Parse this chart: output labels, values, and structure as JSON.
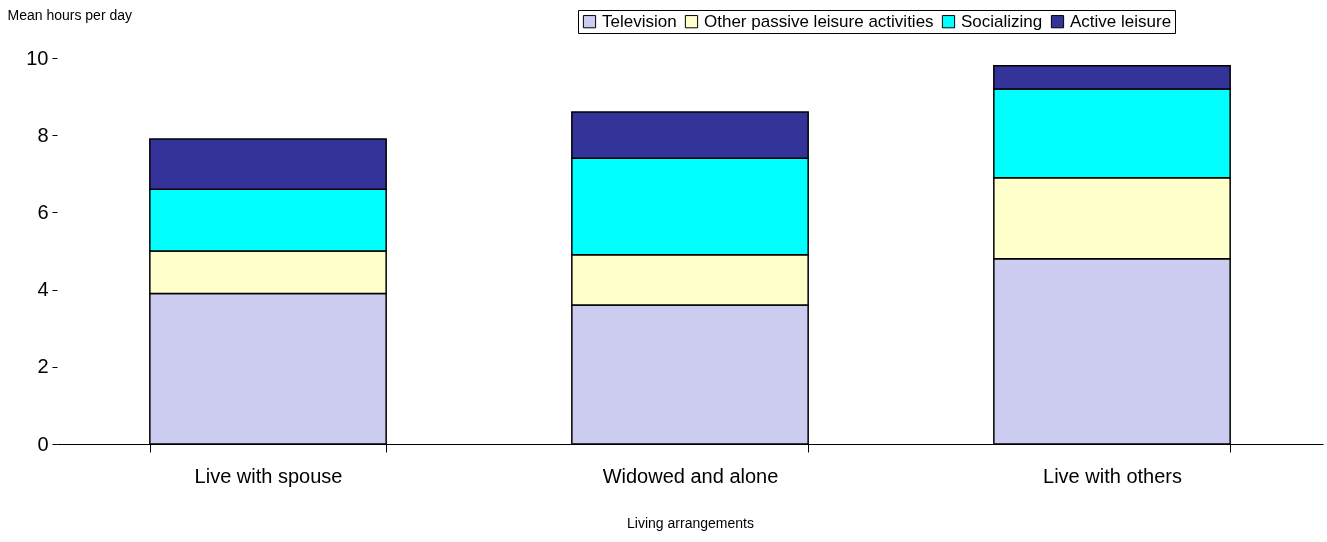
{
  "chart_data": {
    "type": "bar",
    "stacked": true,
    "xlabel": "Living arrangements",
    "ylabel": "Mean hours per day",
    "categories": [
      "Live with spouse",
      "Widowed and alone",
      "Live with others"
    ],
    "series": [
      {
        "name": "Television",
        "color": "#ccccf0",
        "values": [
          3.9,
          3.6,
          4.8
        ]
      },
      {
        "name": "Other passive leisure activities",
        "color": "#ffffcc",
        "values": [
          1.1,
          1.3,
          2.1
        ]
      },
      {
        "name": "Socializing",
        "color": "#00ffff",
        "values": [
          1.6,
          2.5,
          2.3
        ]
      },
      {
        "name": "Active leisure",
        "color": "#333399",
        "values": [
          1.3,
          1.2,
          0.6
        ]
      }
    ],
    "ylim": [
      0,
      10
    ],
    "yticks": [
      0,
      2,
      4,
      6,
      8,
      10
    ],
    "grid": false,
    "legend": "top right"
  }
}
